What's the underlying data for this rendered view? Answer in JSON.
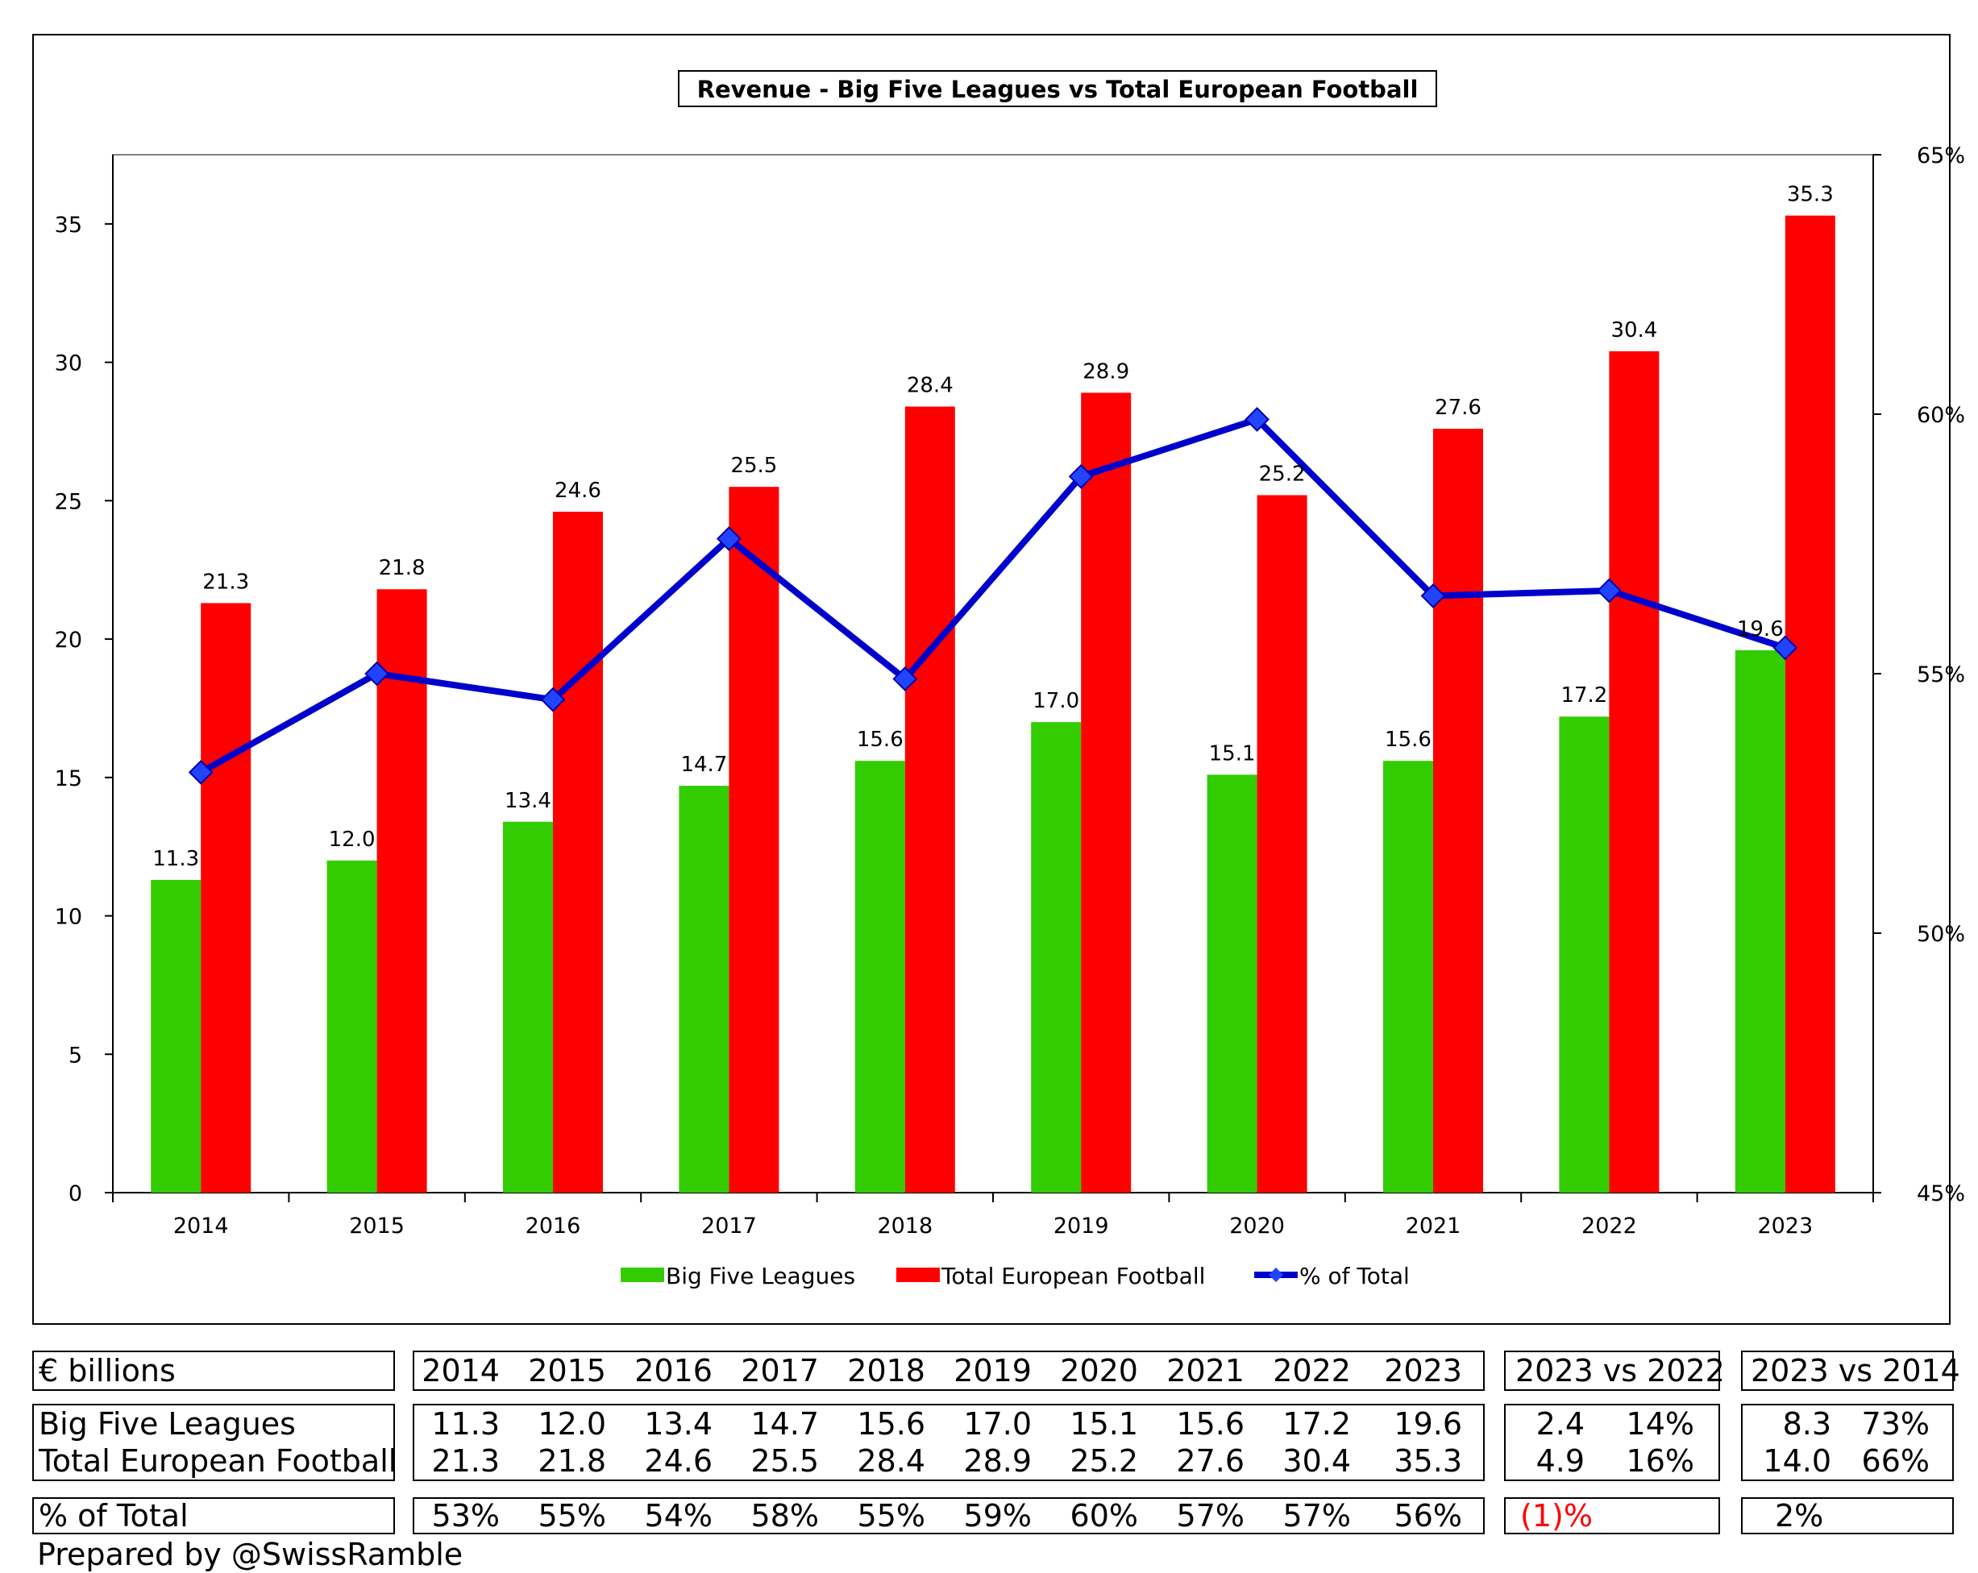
{
  "chart_data": {
    "type": "bar",
    "title": "Revenue - Big Five Leagues vs Total European Football",
    "categories": [
      "2014",
      "2015",
      "2016",
      "2017",
      "2018",
      "2019",
      "2020",
      "2021",
      "2022",
      "2023"
    ],
    "series": [
      {
        "name": "Big Five Leagues",
        "type": "bar",
        "axis": "left",
        "color": "#33cc00",
        "values": [
          11.3,
          12.0,
          13.4,
          14.7,
          15.6,
          17.0,
          15.1,
          15.6,
          17.2,
          19.6
        ],
        "labels": [
          "11.3",
          "12.0",
          "13.4",
          "14.7",
          "15.6",
          "17.0",
          "15.1",
          "15.6",
          "17.2",
          "19.6"
        ]
      },
      {
        "name": "Total European Football",
        "type": "bar",
        "axis": "left",
        "color": "#ff0000",
        "values": [
          21.3,
          21.8,
          24.6,
          25.5,
          28.4,
          28.9,
          25.2,
          27.6,
          30.4,
          35.3
        ],
        "labels": [
          "21.3",
          "21.8",
          "24.6",
          "25.5",
          "28.4",
          "28.9",
          "25.2",
          "27.6",
          "30.4",
          "35.3"
        ]
      },
      {
        "name": "% of Total",
        "type": "line",
        "axis": "right",
        "color": "#0000cc",
        "values": [
          53.1,
          55.0,
          54.5,
          57.6,
          54.9,
          58.8,
          59.9,
          56.5,
          56.6,
          55.5
        ]
      }
    ],
    "yleft": {
      "ylim": [
        0,
        37.5
      ],
      "ticks": [
        0,
        5,
        10,
        15,
        20,
        25,
        30,
        35
      ],
      "tick_labels": [
        "0",
        "5",
        "10",
        "15",
        "20",
        "25",
        "30",
        "35"
      ]
    },
    "yright": {
      "ylim": [
        45,
        65
      ],
      "ticks": [
        45,
        50,
        55,
        60,
        65
      ],
      "tick_labels": [
        "45%",
        "50%",
        "55%",
        "60%",
        "65%"
      ]
    },
    "legend_position": "bottom",
    "grid": false
  },
  "table": {
    "unit_label": "€ billions",
    "years": [
      "2014",
      "2015",
      "2016",
      "2017",
      "2018",
      "2019",
      "2020",
      "2021",
      "2022",
      "2023"
    ],
    "cmp1_header": "2023 vs 2022",
    "cmp2_header": "2023 vs 2014",
    "rows": [
      {
        "label": "Big Five Leagues",
        "values": [
          "11.3",
          "12.0",
          "13.4",
          "14.7",
          "15.6",
          "17.0",
          "15.1",
          "15.6",
          "17.2",
          "19.6"
        ],
        "cmp1_abs": "2.4",
        "cmp1_pct": "14%",
        "cmp2_abs": "8.3",
        "cmp2_pct": "73%"
      },
      {
        "label": "Total European Football",
        "values": [
          "21.3",
          "21.8",
          "24.6",
          "25.5",
          "28.4",
          "28.9",
          "25.2",
          "27.6",
          "30.4",
          "35.3"
        ],
        "cmp1_abs": "4.9",
        "cmp1_pct": "16%",
        "cmp2_abs": "14.0",
        "cmp2_pct": "66%"
      }
    ],
    "pct_row": {
      "label": "% of Total",
      "values": [
        "53%",
        "55%",
        "54%",
        "58%",
        "55%",
        "59%",
        "60%",
        "57%",
        "57%",
        "56%"
      ],
      "cmp1": "(1)%",
      "cmp2": "2%"
    }
  },
  "footer": "Prepared by @SwissRamble"
}
